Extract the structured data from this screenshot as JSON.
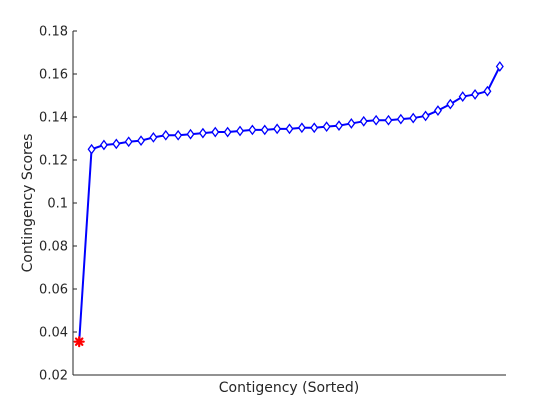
{
  "chart_data": {
    "type": "line",
    "title": "",
    "xlabel": "Contigency (Sorted)",
    "ylabel": "Contingency Scores",
    "ylim": [
      0.02,
      0.18
    ],
    "yticks": [
      0.02,
      0.04,
      0.06,
      0.08,
      0.1,
      0.12,
      0.14,
      0.16,
      0.18
    ],
    "ytick_labels": [
      "0.02",
      "0.04",
      "0.06",
      "0.08",
      "0.1",
      "0.12",
      "0.14",
      "0.16",
      "0.18"
    ],
    "xticks_shown": false,
    "grid": false,
    "legend": false,
    "x": [
      1,
      2,
      3,
      4,
      5,
      6,
      7,
      8,
      9,
      10,
      11,
      12,
      13,
      14,
      15,
      16,
      17,
      18,
      19,
      20,
      21,
      22,
      23,
      24,
      25,
      26,
      27,
      28,
      29,
      30,
      31,
      32,
      33,
      34,
      35
    ],
    "series": [
      {
        "line_color": "#0000ff",
        "marker": "diamond",
        "highlight_color": "#ff0000",
        "highlight_marker": "asterisk",
        "highlight_index": 0,
        "values": [
          0.0355,
          0.125,
          0.127,
          0.1275,
          0.1285,
          0.129,
          0.1305,
          0.1315,
          0.1315,
          0.132,
          0.1325,
          0.133,
          0.133,
          0.1335,
          0.134,
          0.134,
          0.1345,
          0.1345,
          0.135,
          0.135,
          0.1355,
          0.136,
          0.137,
          0.138,
          0.1385,
          0.1385,
          0.139,
          0.1395,
          0.1405,
          0.143,
          0.146,
          0.1495,
          0.1505,
          0.152,
          0.1635
        ]
      }
    ]
  }
}
